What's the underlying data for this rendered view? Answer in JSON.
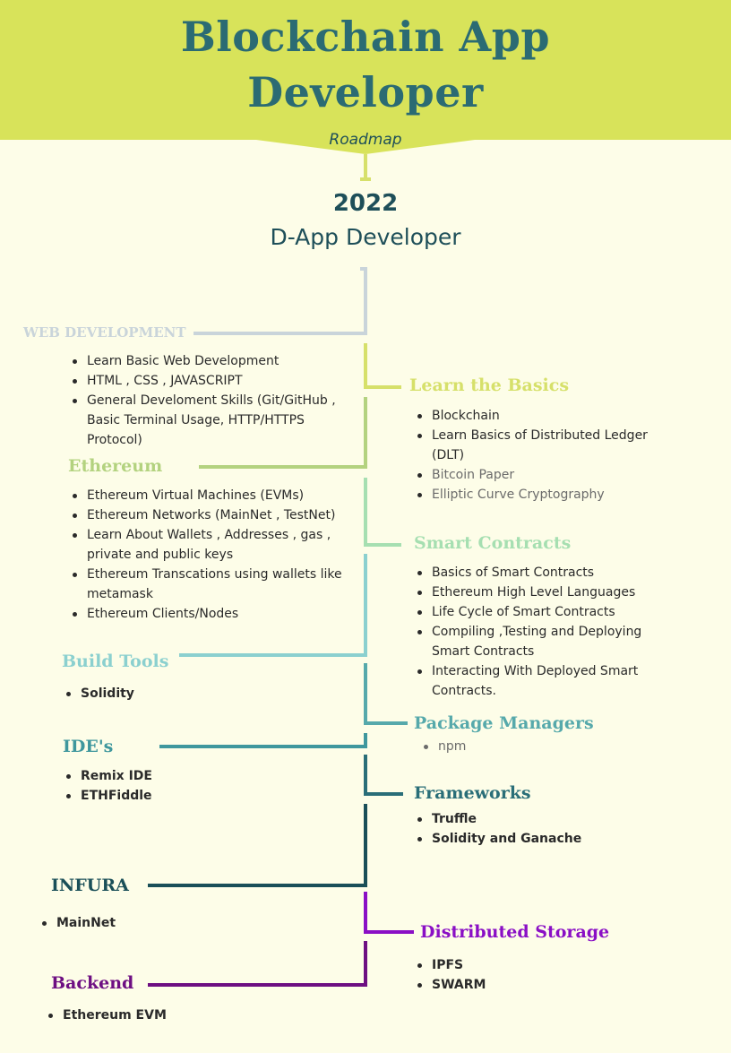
{
  "header": {
    "title_line1": "Blockchain App",
    "title_line2": "Developer",
    "subtitle": "Roadmap",
    "year": "2022",
    "role": "D-App Developer"
  },
  "colors": {
    "banner": "#d8e35a",
    "title": "#2b6b73",
    "background": "#fdfde8",
    "web_dev": "#c9d4da",
    "basics": "#d6e06a",
    "ethereum": "#b3d27f",
    "smart_contracts": "#a6dfb1",
    "build_tools": "#8bd0cf",
    "package_managers": "#56a9ab",
    "ide": "#3f979d",
    "frameworks": "#2a6e78",
    "infura": "#1a4f58",
    "storage": "#8a0fc5",
    "backend": "#6e0f82"
  },
  "sections": {
    "web_development": {
      "title": "WEB DEVELOPMENT",
      "items": [
        "Learn Basic Web Development",
        "HTML , CSS , JAVASCRIPT",
        "General Develoment Skills (Git/GitHub , Basic Terminal Usage, HTTP/HTTPS Protocol)"
      ]
    },
    "basics": {
      "title": "Learn the Basics",
      "items": [
        "Blockchain",
        "Learn Basics of Distributed Ledger (DLT)",
        "Bitcoin Paper",
        "Elliptic Curve Cryptography"
      ]
    },
    "ethereum": {
      "title": "Ethereum",
      "items": [
        "Ethereum Virtual Machines (EVMs)",
        "Ethereum Networks (MainNet , TestNet)",
        "Learn About Wallets , Addresses , gas , private and public keys",
        "Ethereum Transcations using wallets like metamask",
        "Ethereum Clients/Nodes"
      ]
    },
    "smart_contracts": {
      "title": "Smart Contracts",
      "items": [
        "Basics of Smart Contracts",
        "Ethereum High Level Languages",
        "Life Cycle of Smart Contracts",
        "Compiling ,Testing  and Deploying Smart Contracts",
        "Interacting With Deployed Smart Contracts."
      ]
    },
    "build_tools": {
      "title": "Build Tools",
      "items": [
        "Solidity"
      ]
    },
    "package_managers": {
      "title": "Package Managers",
      "items": [
        "npm"
      ]
    },
    "ide": {
      "title": "IDE's",
      "items": [
        "Remix IDE",
        "ETHFiddle"
      ]
    },
    "frameworks": {
      "title": "Frameworks",
      "items": [
        "Truffle",
        "Solidity and Ganache"
      ]
    },
    "infura": {
      "title": "INFURA",
      "items": [
        "MainNet"
      ]
    },
    "storage": {
      "title": "Distributed Storage",
      "items": [
        "IPFS",
        "SWARM"
      ]
    },
    "backend": {
      "title": "Backend",
      "items": [
        "Ethereum EVM"
      ]
    }
  }
}
